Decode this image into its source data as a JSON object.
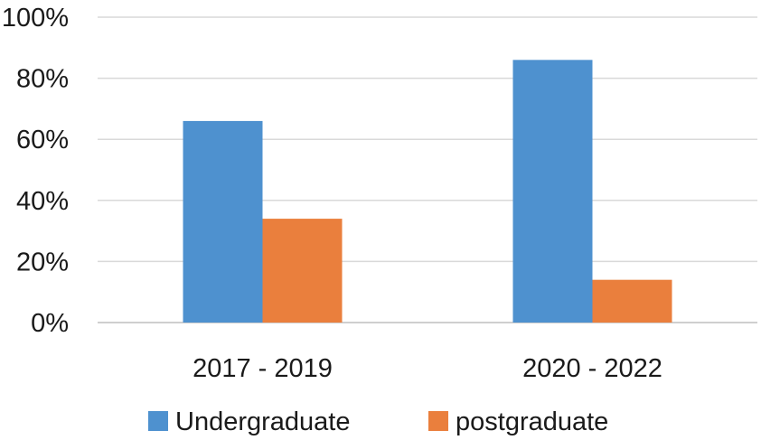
{
  "chart_data": {
    "type": "bar",
    "title": "",
    "xlabel": "",
    "ylabel": "",
    "categories": [
      "2017 - 2019",
      "2020 - 2022"
    ],
    "series": [
      {
        "name": "Undergraduate",
        "values": [
          66,
          86
        ],
        "color": "#4e91cf"
      },
      {
        "name": "postgraduate",
        "values": [
          34,
          14
        ],
        "color": "#ea7f3d"
      }
    ],
    "ylim": [
      0,
      100
    ],
    "yticks": [
      0,
      20,
      40,
      60,
      80,
      100
    ],
    "ytick_labels": [
      "0%",
      "20%",
      "40%",
      "60%",
      "80%",
      "100%"
    ],
    "grid": true,
    "legend_position": "bottom"
  }
}
